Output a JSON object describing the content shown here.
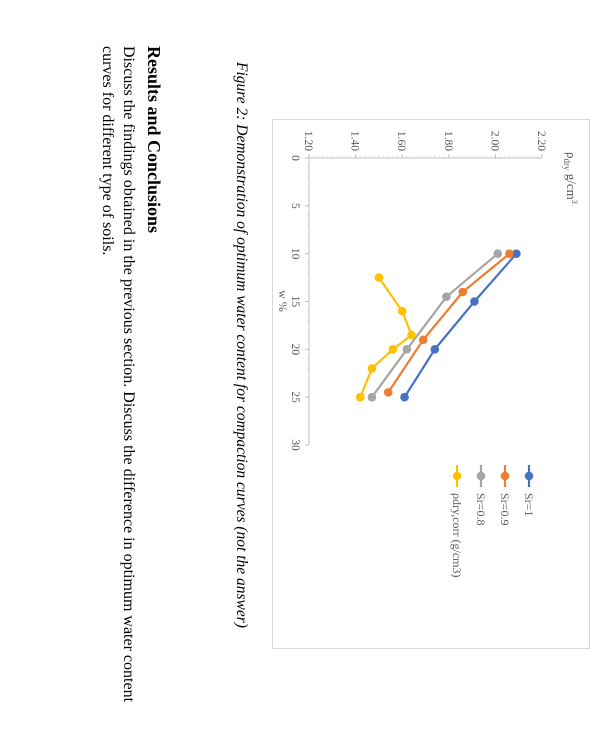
{
  "chart_data": {
    "type": "line",
    "ylabel_main": "ρ",
    "ylabel_sub": "dry",
    "ylabel_unit": " g/cm",
    "ylabel_sup": "3",
    "xlabel": "w %",
    "xlim": [
      0,
      30
    ],
    "ylim": [
      1.2,
      2.2
    ],
    "x_ticks": [
      "0",
      "5",
      "10",
      "15",
      "20",
      "25",
      "30"
    ],
    "y_ticks": [
      "1.20",
      "1.40",
      "1.60",
      "1.80",
      "2.00",
      "2.20"
    ],
    "legend_position": "right",
    "series": [
      {
        "name": "Sr=1",
        "color": "#4472C4",
        "x": [
          10,
          15,
          20,
          25
        ],
        "y": [
          2.09,
          1.91,
          1.74,
          1.61
        ]
      },
      {
        "name": "Sr=0.9",
        "color": "#ED7D31",
        "x": [
          10,
          14,
          19,
          24.5
        ],
        "y": [
          2.06,
          1.86,
          1.69,
          1.54
        ]
      },
      {
        "name": "Sr=0.8",
        "color": "#A5A5A5",
        "x": [
          10,
          14.5,
          20,
          25
        ],
        "y": [
          2.01,
          1.79,
          1.62,
          1.47
        ]
      },
      {
        "name": "ρdry,corr (g/cm3)",
        "color": "#FFC000",
        "x": [
          12.5,
          16,
          18.5,
          20,
          22,
          25
        ],
        "y": [
          1.5,
          1.6,
          1.64,
          1.56,
          1.47,
          1.42
        ]
      }
    ]
  },
  "caption": "Figure 2: Demonstration of optimum water content for compaction curves (not the answer)",
  "section": {
    "heading": "Results and Conclusions",
    "lines": [
      "Discuss the findings obtained in the previous section. Discuss the difference in optimum water content",
      "curves for different type of soils."
    ]
  }
}
